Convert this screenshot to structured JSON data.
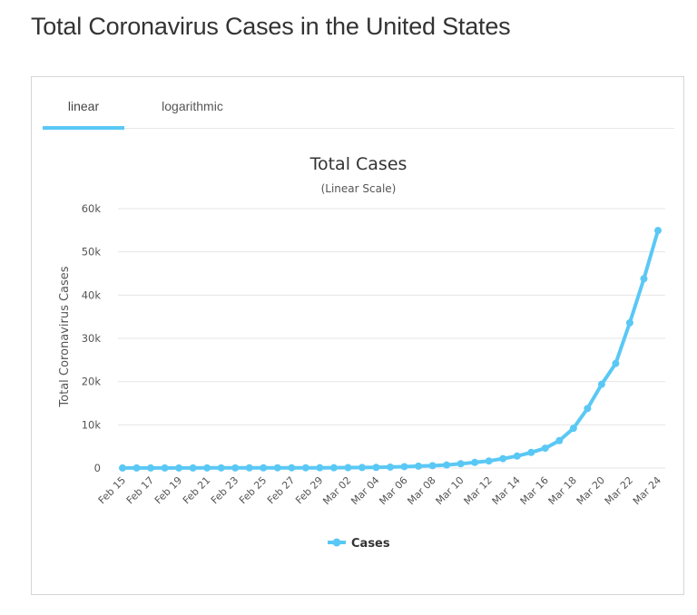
{
  "page": {
    "title": "Total Coronavirus Cases in the United States"
  },
  "tabs": [
    {
      "label": "linear",
      "active": true
    },
    {
      "label": "logarithmic",
      "active": false
    }
  ],
  "colors": {
    "series": "#5ac8f5",
    "grid": "#e6e6e6",
    "tab_active": "#5ac8f5"
  },
  "chart_data": {
    "type": "line",
    "title": "Total Cases",
    "subtitle": "(Linear Scale)",
    "xlabel": "",
    "ylabel": "Total Coronavirus Cases",
    "ylim": [
      0,
      60000
    ],
    "yticks": [
      0,
      10000,
      20000,
      30000,
      40000,
      50000,
      60000
    ],
    "ytick_labels": [
      "0",
      "10k",
      "20k",
      "30k",
      "40k",
      "50k",
      "60k"
    ],
    "x": [
      "Feb 15",
      "Feb 16",
      "Feb 17",
      "Feb 18",
      "Feb 19",
      "Feb 20",
      "Feb 21",
      "Feb 22",
      "Feb 23",
      "Feb 24",
      "Feb 25",
      "Feb 26",
      "Feb 27",
      "Feb 28",
      "Feb 29",
      "Mar 01",
      "Mar 02",
      "Mar 03",
      "Mar 04",
      "Mar 05",
      "Mar 06",
      "Mar 07",
      "Mar 08",
      "Mar 09",
      "Mar 10",
      "Mar 11",
      "Mar 12",
      "Mar 13",
      "Mar 14",
      "Mar 15",
      "Mar 16",
      "Mar 17",
      "Mar 18",
      "Mar 19",
      "Mar 20",
      "Mar 21",
      "Mar 22",
      "Mar 23",
      "Mar 24"
    ],
    "xtick_labels": [
      "Feb 15",
      "Feb 17",
      "Feb 19",
      "Feb 21",
      "Feb 23",
      "Feb 25",
      "Feb 27",
      "Feb 29",
      "Mar 02",
      "Mar 04",
      "Mar 06",
      "Mar 08",
      "Mar 10",
      "Mar 12",
      "Mar 14",
      "Mar 16",
      "Mar 18",
      "Mar 20",
      "Mar 22",
      "Mar 24"
    ],
    "series": [
      {
        "name": "Cases",
        "values": [
          15,
          15,
          15,
          15,
          15,
          15,
          35,
          35,
          35,
          53,
          53,
          59,
          60,
          62,
          68,
          75,
          100,
          124,
          158,
          221,
          319,
          435,
          541,
          704,
          994,
          1301,
          1630,
          2183,
          2770,
          3613,
          4596,
          6344,
          9197,
          13779,
          19367,
          24192,
          33592,
          43781,
          54935
        ]
      }
    ],
    "grid": true,
    "legend": "bottom-center"
  }
}
